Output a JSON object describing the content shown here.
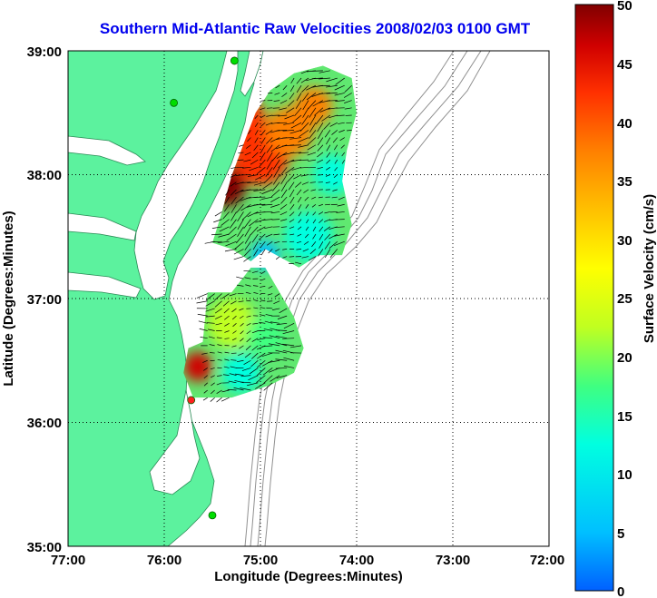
{
  "title": "Southern Mid-Atlantic Raw Velocities 2008/02/03 0100 GMT",
  "x_axis": {
    "label": "Longitude (Degrees:Minutes)",
    "ticks": [
      "77:00",
      "76:00",
      "75:00",
      "74:00",
      "73:00",
      "72:00"
    ]
  },
  "y_axis": {
    "label": "Latitude (Degrees:Minutes)",
    "ticks": [
      "39:00",
      "38:00",
      "37:00",
      "36:00",
      "35:00"
    ]
  },
  "colorbar": {
    "label": "Surface Velocity (cm/s)",
    "ticks": [
      "50",
      "45",
      "40",
      "35",
      "30",
      "25",
      "20",
      "15",
      "10",
      "5",
      "0"
    ],
    "min": 0,
    "max": 50,
    "colors": [
      "#0060ff",
      "#00c0ff",
      "#00ffe0",
      "#40ff80",
      "#c0ff20",
      "#ffff00",
      "#ffc000",
      "#ff8000",
      "#ff3000",
      "#d00000",
      "#800000"
    ]
  },
  "map": {
    "lon_range": [
      -77,
      -72
    ],
    "lat_range": [
      35,
      39
    ],
    "land_color": "#5cf29e",
    "sites": [
      {
        "lon": -75.9,
        "lat": 38.58,
        "color": "#00dd00"
      },
      {
        "lon": -75.27,
        "lat": 38.92,
        "color": "#00dd00"
      },
      {
        "lon": -75.72,
        "lat": 36.18,
        "color": "#ff2020"
      },
      {
        "lon": -75.5,
        "lat": 35.25,
        "color": "#00dd00"
      }
    ],
    "regions": [
      {
        "name": "north",
        "polygon": [
          [
            -75.4,
            37.7
          ],
          [
            -75.35,
            37.85
          ],
          [
            -75.3,
            37.99
          ],
          [
            -75.15,
            38.3
          ],
          [
            -75.05,
            38.5
          ],
          [
            -74.9,
            38.68
          ],
          [
            -74.65,
            38.82
          ],
          [
            -74.35,
            38.88
          ],
          [
            -74.05,
            38.78
          ],
          [
            -74.0,
            38.5
          ],
          [
            -74.1,
            38.2
          ],
          [
            -74.15,
            37.95
          ],
          [
            -74.05,
            37.6
          ],
          [
            -74.15,
            37.35
          ],
          [
            -74.4,
            37.35
          ],
          [
            -74.6,
            37.25
          ],
          [
            -74.95,
            37.4
          ],
          [
            -75.1,
            37.3
          ],
          [
            -75.3,
            37.4
          ],
          [
            -75.5,
            37.45
          ]
        ]
      },
      {
        "name": "south",
        "polygon": [
          [
            -75.55,
            37.05
          ],
          [
            -75.3,
            37.05
          ],
          [
            -75.1,
            37.25
          ],
          [
            -74.95,
            37.25
          ],
          [
            -74.8,
            37.05
          ],
          [
            -74.65,
            36.85
          ],
          [
            -74.55,
            36.6
          ],
          [
            -74.65,
            36.4
          ],
          [
            -74.9,
            36.3
          ],
          [
            -75.3,
            36.2
          ],
          [
            -75.7,
            36.2
          ],
          [
            -75.8,
            36.4
          ],
          [
            -75.75,
            36.6
          ],
          [
            -75.6,
            36.65
          ]
        ]
      }
    ],
    "hotspots": [
      {
        "lon": -75.2,
        "lat": 38.45,
        "r": 0.25,
        "value": 40
      },
      {
        "lon": -75.0,
        "lat": 38.15,
        "r": 0.3,
        "value": 42
      },
      {
        "lon": -75.35,
        "lat": 37.9,
        "r": 0.2,
        "value": 48
      },
      {
        "lon": -74.7,
        "lat": 38.35,
        "r": 0.25,
        "value": 35
      },
      {
        "lon": -74.45,
        "lat": 38.55,
        "r": 0.2,
        "value": 33
      },
      {
        "lon": -74.25,
        "lat": 38.0,
        "r": 0.2,
        "value": 10
      },
      {
        "lon": -74.5,
        "lat": 37.5,
        "r": 0.25,
        "value": 12
      },
      {
        "lon": -74.95,
        "lat": 37.35,
        "r": 0.15,
        "value": 5
      },
      {
        "lon": -75.65,
        "lat": 36.45,
        "r": 0.15,
        "value": 45
      },
      {
        "lon": -75.2,
        "lat": 36.4,
        "r": 0.2,
        "value": 8
      },
      {
        "lon": -75.3,
        "lat": 36.8,
        "r": 0.25,
        "value": 20
      },
      {
        "lon": -74.95,
        "lat": 36.7,
        "r": 0.2,
        "value": 17
      }
    ]
  }
}
